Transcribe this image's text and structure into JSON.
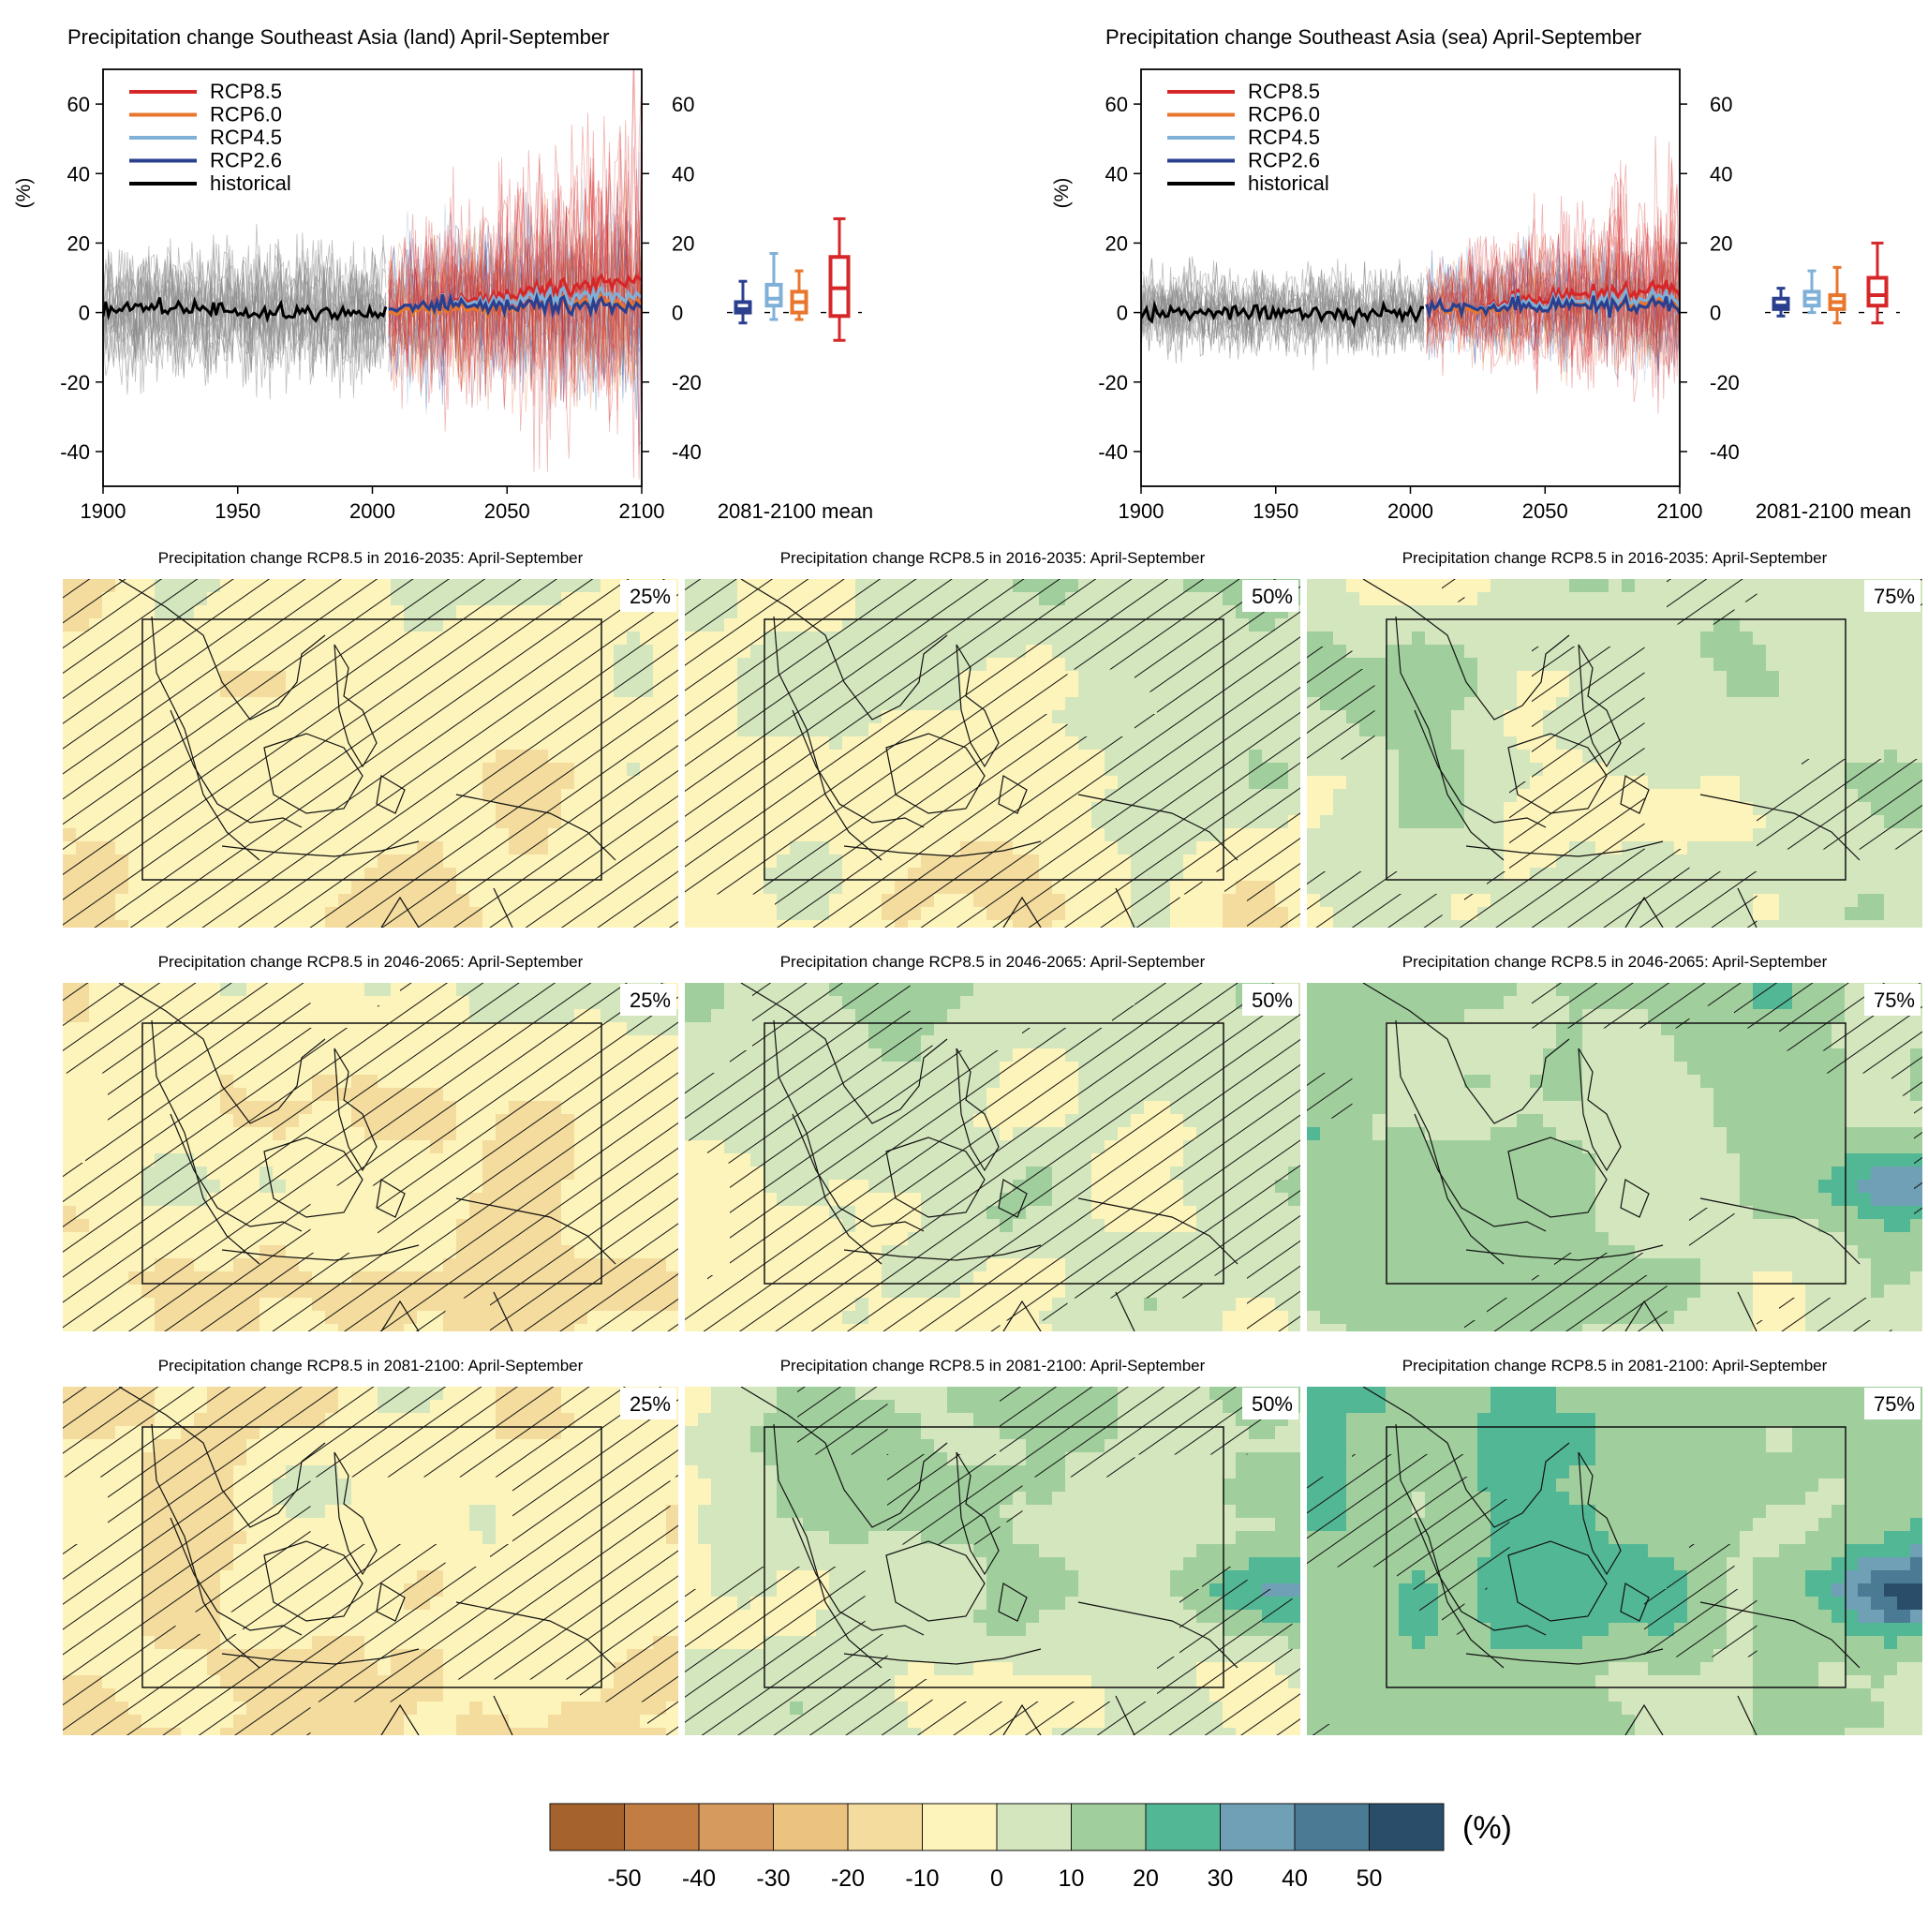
{
  "colors": {
    "rcp85": "#d62728",
    "rcp60": "#e8762d",
    "rcp45": "#7fb0d8",
    "rcp26": "#2b3f8f",
    "historical": "#000000",
    "historical_spread": "#8a8a8a"
  },
  "chart_data": [
    {
      "id": "land",
      "type": "line",
      "title": "Precipitation change Southeast Asia (land) April-September",
      "ylabel": "(%)",
      "xlim": [
        1900,
        2100
      ],
      "ylim": [
        -50,
        70
      ],
      "xticks": [
        "1900",
        "1950",
        "2000",
        "2050",
        "2100"
      ],
      "yticks": [
        "60",
        "40",
        "20",
        "0",
        "-20",
        "-40"
      ],
      "legend_position": "top-left",
      "series": [
        {
          "name": "RCP8.5",
          "key": "rcp85",
          "x": [
            2006,
            2020,
            2040,
            2060,
            2080,
            2100
          ],
          "y": [
            1,
            2,
            4,
            6,
            8,
            10
          ]
        },
        {
          "name": "RCP6.0",
          "key": "rcp60",
          "x": [
            2006,
            2020,
            2040,
            2060,
            2080,
            2100
          ],
          "y": [
            0,
            1,
            1,
            2,
            3,
            3
          ]
        },
        {
          "name": "RCP4.5",
          "key": "rcp45",
          "x": [
            2006,
            2020,
            2040,
            2060,
            2080,
            2100
          ],
          "y": [
            1,
            2,
            3,
            4,
            5,
            5
          ]
        },
        {
          "name": "RCP2.6",
          "key": "rcp26",
          "x": [
            2006,
            2020,
            2040,
            2060,
            2080,
            2100
          ],
          "y": [
            1,
            2,
            2,
            2,
            2,
            2
          ]
        },
        {
          "name": "historical",
          "key": "historical",
          "x": [
            1900,
            1920,
            1940,
            1960,
            1980,
            2000,
            2005
          ],
          "y": [
            1,
            2,
            1,
            0,
            0,
            -1,
            0
          ]
        }
      ],
      "boxplot": {
        "label": "2081-2100 mean",
        "boxes": [
          {
            "key": "rcp26",
            "min": -3,
            "q1": 0,
            "median": 1,
            "q3": 3,
            "max": 9
          },
          {
            "key": "rcp45",
            "min": -2,
            "q1": 2,
            "median": 4,
            "q3": 8,
            "max": 17
          },
          {
            "key": "rcp60",
            "min": -2,
            "q1": 0,
            "median": 3,
            "q3": 6,
            "max": 12
          },
          {
            "key": "rcp85",
            "min": -8,
            "q1": -1,
            "median": 7,
            "q3": 16,
            "max": 27
          }
        ]
      }
    },
    {
      "id": "sea",
      "type": "line",
      "title": "Precipitation change Southeast Asia (sea) April-September",
      "ylabel": "(%)",
      "xlim": [
        1900,
        2100
      ],
      "ylim": [
        -50,
        70
      ],
      "xticks": [
        "1900",
        "1950",
        "2000",
        "2050",
        "2100"
      ],
      "yticks": [
        "60",
        "40",
        "20",
        "0",
        "-20",
        "-40"
      ],
      "legend_position": "top-left",
      "series": [
        {
          "name": "RCP8.5",
          "key": "rcp85",
          "x": [
            2006,
            2020,
            2040,
            2060,
            2080,
            2100
          ],
          "y": [
            1,
            2,
            4,
            5,
            6,
            7
          ]
        },
        {
          "name": "RCP6.0",
          "key": "rcp60",
          "x": [
            2006,
            2020,
            2040,
            2060,
            2080,
            2100
          ],
          "y": [
            1,
            1,
            2,
            2,
            3,
            3
          ]
        },
        {
          "name": "RCP4.5",
          "key": "rcp45",
          "x": [
            2006,
            2020,
            2040,
            2060,
            2080,
            2100
          ],
          "y": [
            1,
            2,
            3,
            3,
            4,
            4
          ]
        },
        {
          "name": "RCP2.6",
          "key": "rcp26",
          "x": [
            2006,
            2020,
            2040,
            2060,
            2080,
            2100
          ],
          "y": [
            1,
            2,
            2,
            2,
            2,
            2
          ]
        },
        {
          "name": "historical",
          "key": "historical",
          "x": [
            1900,
            1920,
            1940,
            1960,
            1980,
            2000,
            2005
          ],
          "y": [
            -1,
            0,
            0,
            0,
            -1,
            0,
            1
          ]
        }
      ],
      "boxplot": {
        "label": "2081-2100 mean",
        "boxes": [
          {
            "key": "rcp26",
            "min": -1,
            "q1": 1,
            "median": 2,
            "q3": 4,
            "max": 7
          },
          {
            "key": "rcp45",
            "min": 0,
            "q1": 2,
            "median": 4,
            "q3": 6,
            "max": 12
          },
          {
            "key": "rcp60",
            "min": -3,
            "q1": 1,
            "median": 3,
            "q3": 5,
            "max": 13
          },
          {
            "key": "rcp85",
            "min": -3,
            "q1": 2,
            "median": 5,
            "q3": 10,
            "max": 20
          }
        ]
      }
    },
    {
      "id": "maps",
      "type": "heatmap",
      "panels": [
        {
          "title": "Precipitation change RCP8.5 in 2016-2035: April-September",
          "percentile": "25%",
          "mean": -5,
          "hatch": 0.95
        },
        {
          "title": "Precipitation change RCP8.5 in 2016-2035: April-September",
          "percentile": "50%",
          "mean": 2,
          "hatch": 0.75
        },
        {
          "title": "Precipitation change RCP8.5 in 2016-2035: April-September",
          "percentile": "75%",
          "mean": 7,
          "hatch": 0.35
        },
        {
          "title": "Precipitation change RCP8.5 in 2046-2065: April-September",
          "percentile": "25%",
          "mean": -3,
          "hatch": 0.8
        },
        {
          "title": "Precipitation change RCP8.5 in 2046-2065: April-September",
          "percentile": "50%",
          "mean": 6,
          "hatch": 0.6
        },
        {
          "title": "Precipitation change RCP8.5 in 2046-2065: April-September",
          "percentile": "75%",
          "mean": 13,
          "hatch": 0.3
        },
        {
          "title": "Precipitation change RCP8.5 in 2081-2100: April-September",
          "percentile": "25%",
          "mean": -7,
          "hatch": 0.7
        },
        {
          "title": "Precipitation change RCP8.5 in 2081-2100: April-September",
          "percentile": "50%",
          "mean": 10,
          "hatch": 0.45
        },
        {
          "title": "Precipitation change RCP8.5 in 2081-2100: April-September",
          "percentile": "75%",
          "mean": 20,
          "hatch": 0.25
        }
      ],
      "colorbar": {
        "unit": "(%)",
        "ticks": [
          "-50",
          "-40",
          "-30",
          "-20",
          "-10",
          "0",
          "10",
          "20",
          "30",
          "40",
          "50"
        ],
        "colors": [
          "#a6622c",
          "#c27d43",
          "#d79a5e",
          "#ecc27f",
          "#f4dc9e",
          "#fdf4bb",
          "#d4e6be",
          "#a0cf9d",
          "#52b795",
          "#6fa0b5",
          "#4a7a94",
          "#2a4e6a"
        ]
      }
    }
  ]
}
